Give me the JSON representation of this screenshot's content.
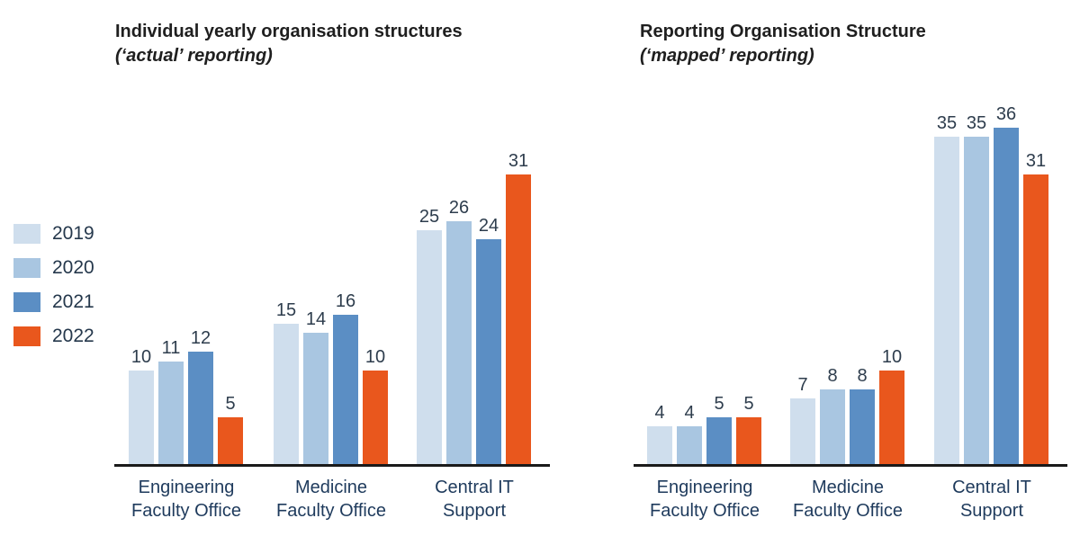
{
  "colors": {
    "axis": "#1a1a1a",
    "title_text": "#1f1f1f",
    "value_label_text": "#2e3d4d",
    "category_label_text": "#1e3a5c",
    "series_2019": "#cfdeed",
    "series_2020": "#a9c6e1",
    "series_2021": "#5b8ec4",
    "series_2022": "#e9571d"
  },
  "legend": {
    "position": "left",
    "items": [
      {
        "label": "2019",
        "color": "#cfdeed"
      },
      {
        "label": "2020",
        "color": "#a9c6e1"
      },
      {
        "label": "2021",
        "color": "#5b8ec4"
      },
      {
        "label": "2022",
        "color": "#e9571d"
      }
    ]
  },
  "chart_data": [
    {
      "type": "bar",
      "title": "Individual yearly organisation structures",
      "subtitle": "(‘actual’ reporting)",
      "categories": [
        [
          "Engineering",
          "Faculty Office"
        ],
        [
          "Medicine",
          "Faculty Office"
        ],
        [
          "Central IT",
          "Support"
        ]
      ],
      "series": [
        {
          "name": "2019",
          "color": "#cfdeed",
          "values": [
            10,
            15,
            25
          ]
        },
        {
          "name": "2020",
          "color": "#a9c6e1",
          "values": [
            11,
            14,
            26
          ]
        },
        {
          "name": "2021",
          "color": "#5b8ec4",
          "values": [
            12,
            16,
            24
          ]
        },
        {
          "name": "2022",
          "color": "#e9571d",
          "values": [
            5,
            10,
            31
          ]
        }
      ],
      "ylim": [
        0,
        36
      ],
      "grid": false,
      "value_labels": true,
      "y_axis_visible": false
    },
    {
      "type": "bar",
      "title": "Reporting Organisation Structure",
      "subtitle": "(‘mapped’ reporting)",
      "categories": [
        [
          "Engineering",
          "Faculty Office"
        ],
        [
          "Medicine",
          "Faculty Office"
        ],
        [
          "Central IT",
          "Support"
        ]
      ],
      "series": [
        {
          "name": "2019",
          "color": "#cfdeed",
          "values": [
            4,
            7,
            35
          ]
        },
        {
          "name": "2020",
          "color": "#a9c6e1",
          "values": [
            4,
            8,
            35
          ]
        },
        {
          "name": "2021",
          "color": "#5b8ec4",
          "values": [
            5,
            8,
            36
          ]
        },
        {
          "name": "2022",
          "color": "#e9571d",
          "values": [
            5,
            10,
            31
          ]
        }
      ],
      "ylim": [
        0,
        36
      ],
      "grid": false,
      "value_labels": true,
      "y_axis_visible": false
    }
  ]
}
